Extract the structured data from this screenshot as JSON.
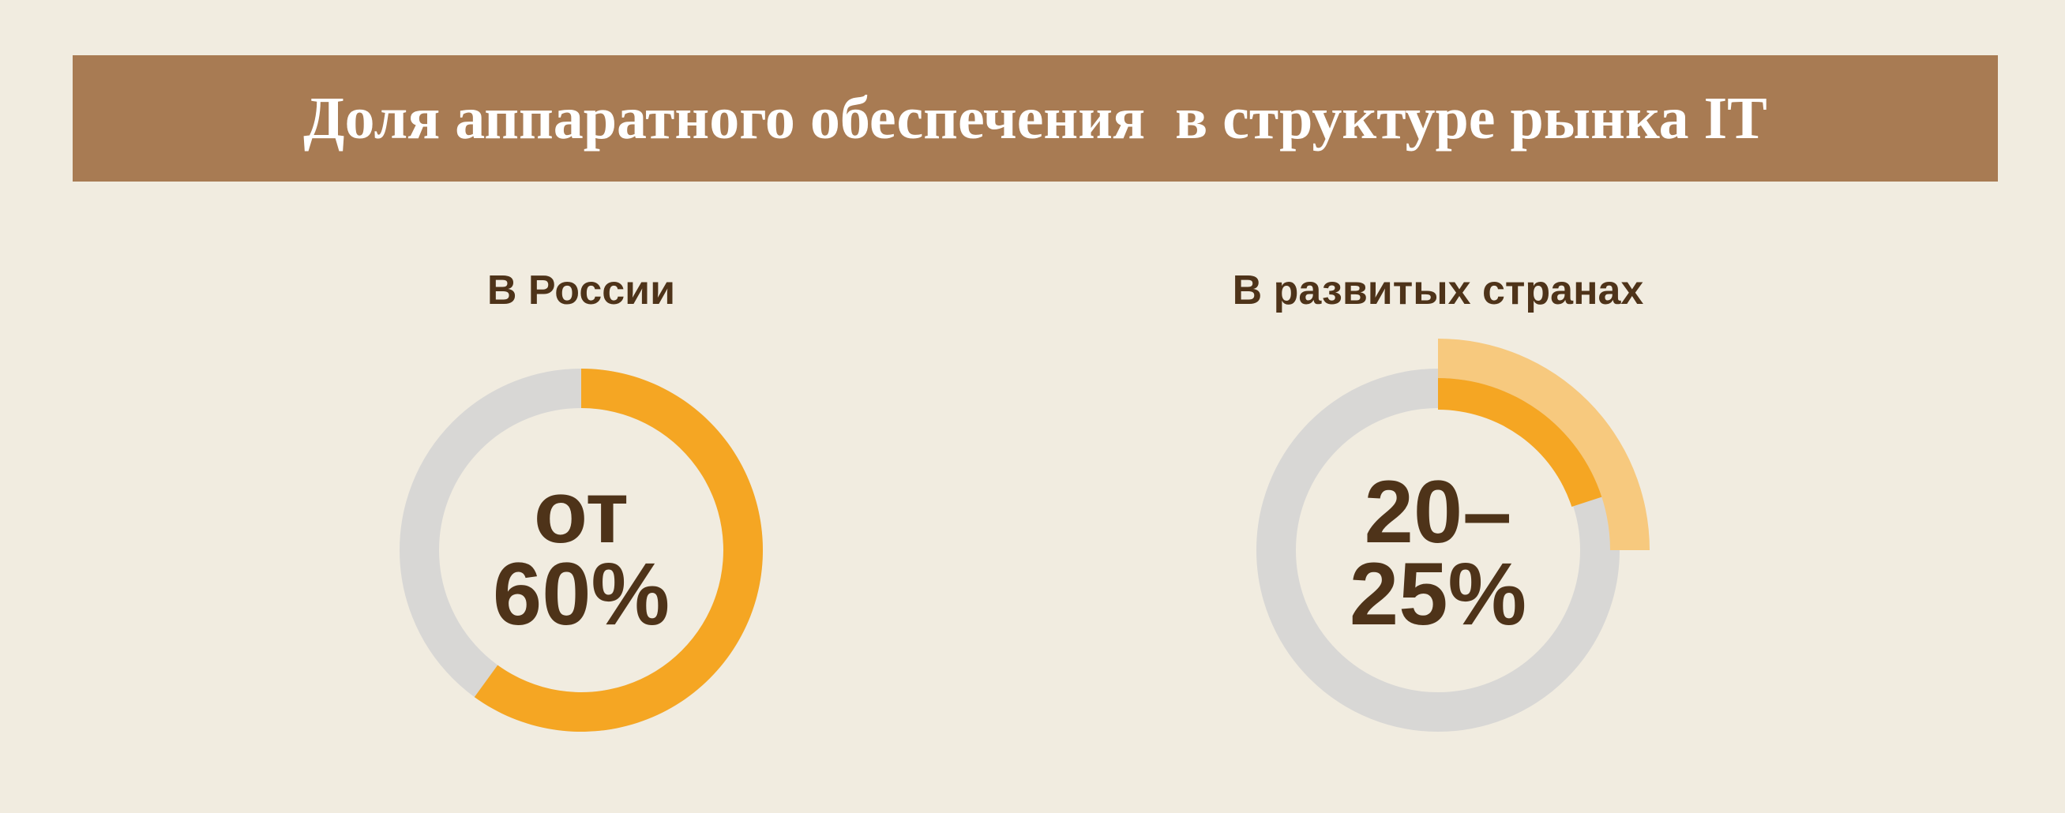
{
  "title": "Доля аппаратного обеспечения  в структуре рынка IT",
  "chart_data": [
    {
      "type": "donut",
      "title": "В России",
      "values": [
        60
      ],
      "value_labels": [
        "от 60%"
      ],
      "colors": [
        "#f5a623"
      ]
    },
    {
      "type": "donut-range",
      "title": "В развитых странах",
      "values": [
        20,
        25
      ],
      "value_labels": [
        "20–",
        "25%"
      ],
      "colors": [
        "#f5a623",
        "#f7c97e"
      ]
    }
  ]
}
